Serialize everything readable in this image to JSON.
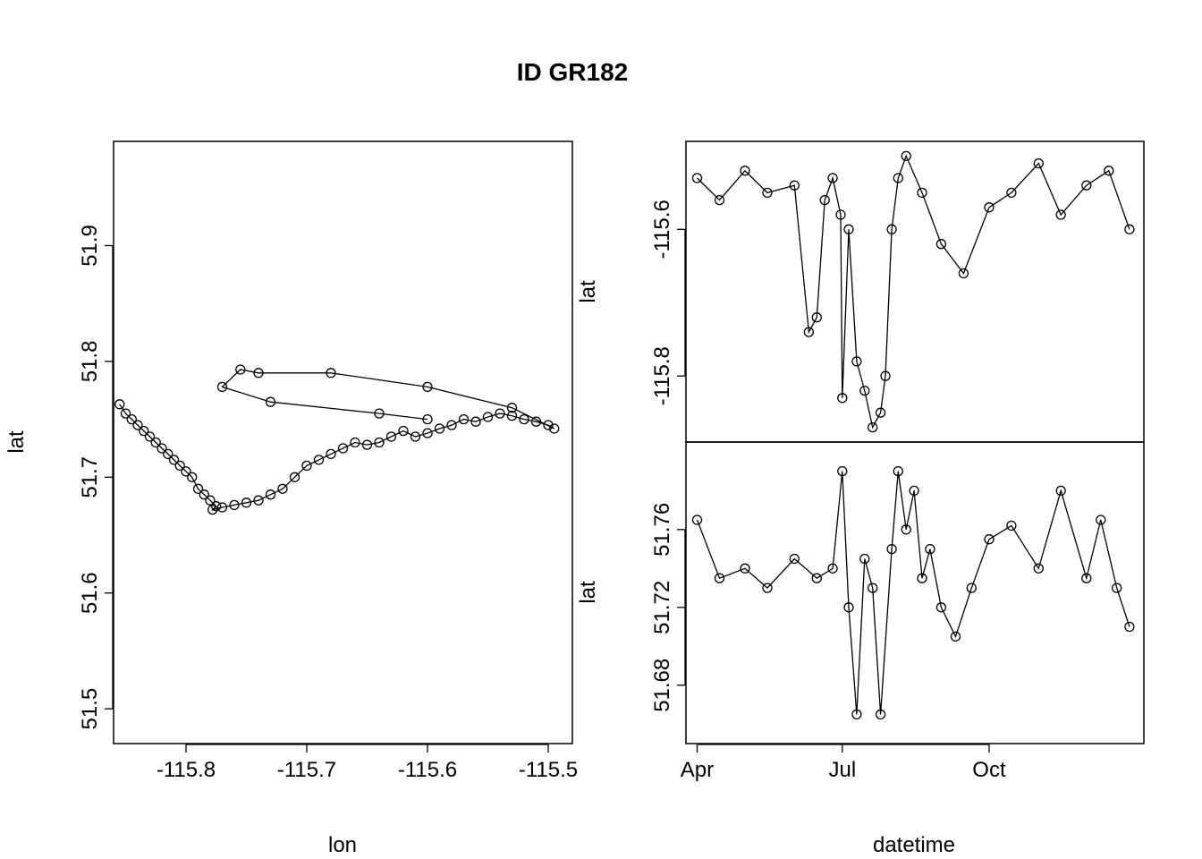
{
  "chart_data": [
    {
      "type": "scatter",
      "title": "ID GR182",
      "xlabel": "lon",
      "ylabel": "lat",
      "xlim": [
        -115.86,
        -115.48
      ],
      "ylim": [
        51.47,
        51.99
      ],
      "xticks": [
        -115.8,
        -115.7,
        -115.6,
        -115.5
      ],
      "xtick_labels": [
        "-115.8",
        "-115.7",
        "-115.6",
        "-115.5"
      ],
      "yticks": [
        51.5,
        51.6,
        51.7,
        51.8,
        51.9
      ],
      "ytick_labels": [
        "51.5",
        "51.6",
        "51.7",
        "51.8",
        "51.9"
      ],
      "markers": "open circles joined by lines",
      "grid": false,
      "series": [
        {
          "x": [
            -115.855,
            -115.85,
            -115.845,
            -115.84,
            -115.835,
            -115.83,
            -115.825,
            -115.82,
            -115.815,
            -115.81,
            -115.805,
            -115.8,
            -115.795,
            -115.79,
            -115.785,
            -115.78,
            -115.775,
            -115.778,
            -115.77,
            -115.76,
            -115.75,
            -115.74,
            -115.73,
            -115.72,
            -115.71,
            -115.7,
            -115.69,
            -115.68,
            -115.67,
            -115.66,
            -115.65,
            -115.64,
            -115.63,
            -115.62,
            -115.61,
            -115.6,
            -115.59,
            -115.58,
            -115.57,
            -115.56,
            -115.55,
            -115.54,
            -115.53,
            -115.52,
            -115.51,
            -115.5,
            -115.495,
            -115.53,
            -115.6,
            -115.68,
            -115.74,
            -115.755,
            -115.77,
            -115.73,
            -115.64,
            -115.6
          ],
          "y": [
            51.763,
            51.755,
            51.75,
            51.745,
            51.74,
            51.735,
            51.73,
            51.725,
            51.72,
            51.715,
            51.71,
            51.705,
            51.7,
            51.69,
            51.685,
            51.68,
            51.675,
            51.672,
            51.674,
            51.676,
            51.678,
            51.68,
            51.685,
            51.69,
            51.7,
            51.71,
            51.715,
            51.72,
            51.725,
            51.73,
            51.728,
            51.73,
            51.735,
            51.74,
            51.735,
            51.738,
            51.742,
            51.745,
            51.75,
            51.748,
            51.752,
            51.755,
            51.753,
            51.75,
            51.748,
            51.745,
            51.742,
            51.76,
            51.778,
            51.79,
            51.79,
            51.793,
            51.778,
            51.765,
            51.755,
            51.75
          ]
        }
      ]
    },
    {
      "type": "line",
      "xlabel": "datetime",
      "ylabel": "lat",
      "xtick_labels": [
        "Apr",
        "Jul",
        "Oct"
      ],
      "yticks": [
        -115.8,
        -115.6
      ],
      "ytick_labels": [
        "-115.8",
        "-115.6"
      ],
      "ylim": [
        -115.89,
        -115.48
      ],
      "markers": "open circles joined by lines",
      "series": [
        {
          "x": [
            "2021-04-01",
            "2021-04-15",
            "2021-05-01",
            "2021-05-15",
            "2021-06-01",
            "2021-06-10",
            "2021-06-15",
            "2021-06-20",
            "2021-06-25",
            "2021-06-30",
            "2021-07-01",
            "2021-07-05",
            "2021-07-10",
            "2021-07-15",
            "2021-07-20",
            "2021-07-25",
            "2021-07-28",
            "2021-08-01",
            "2021-08-05",
            "2021-08-10",
            "2021-08-20",
            "2021-09-01",
            "2021-09-15",
            "2021-10-01",
            "2021-10-15",
            "2021-11-01",
            "2021-11-15",
            "2021-12-01",
            "2021-12-15",
            "2021-12-28"
          ],
          "y": [
            -115.53,
            -115.56,
            -115.52,
            -115.55,
            -115.54,
            -115.74,
            -115.72,
            -115.56,
            -115.53,
            -115.58,
            -115.83,
            -115.6,
            -115.78,
            -115.82,
            -115.87,
            -115.85,
            -115.8,
            -115.6,
            -115.53,
            -115.5,
            -115.55,
            -115.62,
            -115.66,
            -115.57,
            -115.55,
            -115.51,
            -115.58,
            -115.54,
            -115.52,
            -115.6
          ]
        }
      ]
    },
    {
      "type": "line",
      "xlabel": "datetime",
      "ylabel": "lat",
      "xtick_labels": [
        "Apr",
        "Jul",
        "Oct"
      ],
      "yticks": [
        51.68,
        51.72,
        51.76
      ],
      "ytick_labels": [
        "51.68",
        "51.72",
        "51.76"
      ],
      "ylim": [
        51.65,
        51.805
      ],
      "markers": "open circles joined by lines",
      "series": [
        {
          "x": [
            "2021-04-01",
            "2021-04-15",
            "2021-05-01",
            "2021-05-15",
            "2021-06-01",
            "2021-06-15",
            "2021-06-25",
            "2021-07-01",
            "2021-07-05",
            "2021-07-10",
            "2021-07-15",
            "2021-07-20",
            "2021-07-25",
            "2021-08-01",
            "2021-08-05",
            "2021-08-10",
            "2021-08-15",
            "2021-08-20",
            "2021-08-25",
            "2021-09-01",
            "2021-09-10",
            "2021-09-20",
            "2021-10-01",
            "2021-10-15",
            "2021-11-01",
            "2021-11-15",
            "2021-12-01",
            "2021-12-10",
            "2021-12-20",
            "2021-12-28"
          ],
          "y": [
            51.765,
            51.735,
            51.74,
            51.73,
            51.745,
            51.735,
            51.74,
            51.79,
            51.72,
            51.665,
            51.745,
            51.73,
            51.665,
            51.75,
            51.79,
            51.76,
            51.78,
            51.735,
            51.75,
            51.72,
            51.705,
            51.73,
            51.755,
            51.762,
            51.74,
            51.78,
            51.735,
            51.765,
            51.73,
            51.71
          ]
        }
      ]
    }
  ]
}
